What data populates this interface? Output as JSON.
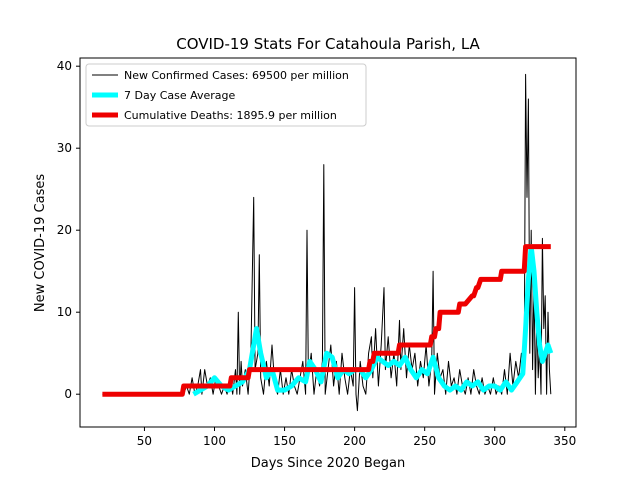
{
  "chart_data": {
    "type": "line",
    "title": "COVID-19 Stats For Catahoula Parish, LA",
    "x_label": "Days Since 2020 Began",
    "y_label": "New COVID-19 Cases",
    "xlim": [
      4,
      358
    ],
    "ylim": [
      -4,
      41
    ],
    "xticks": [
      50,
      100,
      150,
      200,
      250,
      300,
      350
    ],
    "yticks": [
      0,
      10,
      20,
      30,
      40
    ],
    "legend": "upper left",
    "series": [
      {
        "name": "New Confirmed Cases: 69500 per million",
        "color": "#000000",
        "width": 1,
        "x": [
          20,
          78,
          80,
          82,
          84,
          86,
          88,
          90,
          91,
          93,
          95,
          97,
          99,
          101,
          103,
          105,
          107,
          109,
          111,
          113,
          115,
          116,
          117,
          118,
          119,
          120,
          122,
          124,
          126,
          128,
          129,
          131,
          132,
          133,
          135,
          137,
          139,
          141,
          143,
          145,
          147,
          149,
          151,
          153,
          155,
          157,
          159,
          161,
          163,
          165,
          166,
          167,
          169,
          171,
          173,
          175,
          177,
          178,
          179,
          181,
          183,
          185,
          187,
          189,
          191,
          193,
          195,
          197,
          199,
          200,
          201,
          202,
          204,
          206,
          208,
          210,
          212,
          213,
          215,
          217,
          219,
          221,
          222,
          224,
          226,
          228,
          230,
          232,
          233,
          235,
          237,
          239,
          241,
          243,
          245,
          247,
          249,
          251,
          253,
          255,
          256,
          257,
          259,
          261,
          263,
          265,
          267,
          269,
          271,
          273,
          275,
          277,
          279,
          281,
          283,
          285,
          287,
          289,
          291,
          293,
          295,
          297,
          299,
          301,
          303,
          305,
          307,
          309,
          311,
          313,
          315,
          317,
          319,
          321,
          322,
          323,
          324,
          325,
          326,
          327,
          328,
          329,
          330,
          331,
          332,
          333,
          334,
          335,
          336,
          337,
          338,
          339,
          340
        ],
        "values": [
          0,
          0,
          1,
          0,
          2,
          0,
          1,
          3,
          0,
          3,
          1,
          2,
          0,
          2,
          1,
          0,
          1,
          0,
          2,
          0,
          3,
          0,
          10,
          0,
          4,
          1,
          3,
          0,
          5,
          24,
          3,
          5,
          17,
          2,
          0,
          4,
          1,
          6,
          1,
          0,
          3,
          0,
          2,
          0,
          3,
          1,
          0,
          2,
          4,
          0,
          20,
          2,
          5,
          0,
          3,
          1,
          4,
          28,
          0,
          3,
          6,
          1,
          4,
          0,
          5,
          2,
          0,
          3,
          1,
          13,
          0,
          -2,
          4,
          1,
          0,
          5,
          7,
          2,
          8,
          1,
          6,
          13,
          3,
          7,
          2,
          5,
          1,
          9,
          3,
          8,
          2,
          6,
          3,
          5,
          1,
          4,
          2,
          6,
          1,
          4,
          15,
          0,
          5,
          2,
          3,
          0,
          4,
          1,
          2,
          0,
          3,
          1,
          0,
          2,
          0,
          3,
          1,
          0,
          2,
          0,
          1,
          0,
          2,
          0,
          1,
          0,
          3,
          0,
          5,
          1,
          4,
          2,
          5,
          3,
          39,
          24,
          36,
          5,
          20,
          3,
          14,
          0,
          10,
          2,
          6,
          0,
          19,
          8,
          12,
          0,
          10,
          3,
          0
        ]
      },
      {
        "name": "7 Day Case Average",
        "color": "#00ffff",
        "width": 5,
        "x": [
          85,
          95,
          100,
          105,
          110,
          115,
          120,
          125,
          130,
          133,
          137,
          141,
          145,
          150,
          155,
          160,
          165,
          168,
          172,
          176,
          180,
          184,
          188,
          192,
          196,
          200,
          204,
          208,
          212,
          216,
          220,
          224,
          228,
          232,
          236,
          240,
          244,
          248,
          252,
          256,
          260,
          264,
          268,
          272,
          276,
          280,
          284,
          288,
          292,
          296,
          300,
          304,
          308,
          312,
          316,
          320,
          322,
          324,
          326,
          328,
          330,
          332,
          334,
          336,
          338,
          340
        ],
        "values": [
          0,
          1,
          2,
          1,
          0.5,
          1,
          1.5,
          3,
          8,
          5,
          2,
          3,
          0.5,
          0.5,
          1,
          2,
          1.5,
          4,
          3,
          1.5,
          5,
          4.5,
          2,
          3,
          2.5,
          3,
          3,
          2,
          3,
          4.5,
          4,
          3.5,
          4,
          3.5,
          4.5,
          3,
          2,
          3,
          2.5,
          4.5,
          2,
          1,
          0.5,
          1,
          0.5,
          1.5,
          1,
          1.5,
          0.5,
          1,
          1,
          0.5,
          1.5,
          0.5,
          1.5,
          2.5,
          8,
          14,
          18,
          15,
          10,
          6,
          4,
          5,
          6,
          5
        ]
      },
      {
        "name": "Cumulative Deaths: 1895.9 per million",
        "color": "#ee0000",
        "width": 5,
        "x": [
          20,
          77,
          78,
          111,
          112,
          124,
          125,
          210,
          211,
          213,
          214,
          231,
          232,
          254,
          255,
          257,
          258,
          260,
          261,
          274,
          275,
          278,
          279,
          284,
          285,
          287,
          288,
          290,
          291,
          304,
          305,
          321,
          322,
          340
        ],
        "values": [
          0,
          0,
          1,
          1,
          2,
          2,
          3,
          3,
          4,
          4,
          5,
          5,
          6,
          6,
          7,
          7,
          8,
          8,
          10,
          10,
          11,
          11,
          11,
          12,
          12,
          13,
          13,
          14,
          14,
          14,
          15,
          15,
          18,
          18
        ]
      }
    ]
  }
}
